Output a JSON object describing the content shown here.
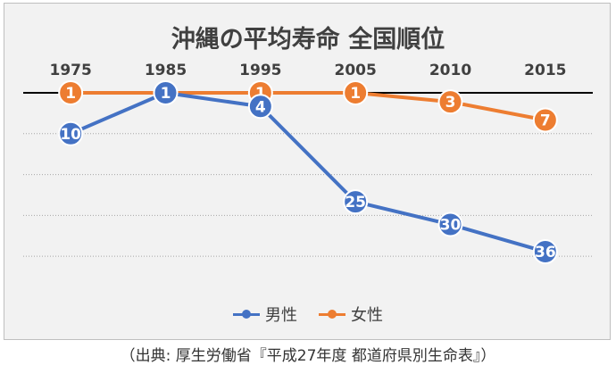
{
  "title": "沖縄の平均寿命 全国順位",
  "source": "（出典: 厚生労働省『平成27年度 都道府県別生命表』）",
  "colors": {
    "male": "#4472c4",
    "female": "#ed7d31",
    "axis": "#000000",
    "grid": "#a6a6a6",
    "text": "#404040"
  },
  "chart_data": {
    "type": "line",
    "title": "沖縄の平均寿命 全国順位",
    "categories": [
      "1975",
      "1985",
      "1995",
      "2005",
      "2010",
      "2015"
    ],
    "ylim": [
      1,
      47
    ],
    "y_inverted": true,
    "y_gridlines": [
      1,
      10,
      19,
      28,
      37
    ],
    "grid": true,
    "legend": "bottom",
    "series": [
      {
        "name": "男性",
        "color": "#4472c4",
        "values": [
          10,
          1,
          4,
          25,
          30,
          36
        ]
      },
      {
        "name": "女性",
        "color": "#ed7d31",
        "values": [
          1,
          1,
          1,
          1,
          3,
          7
        ]
      }
    ]
  }
}
